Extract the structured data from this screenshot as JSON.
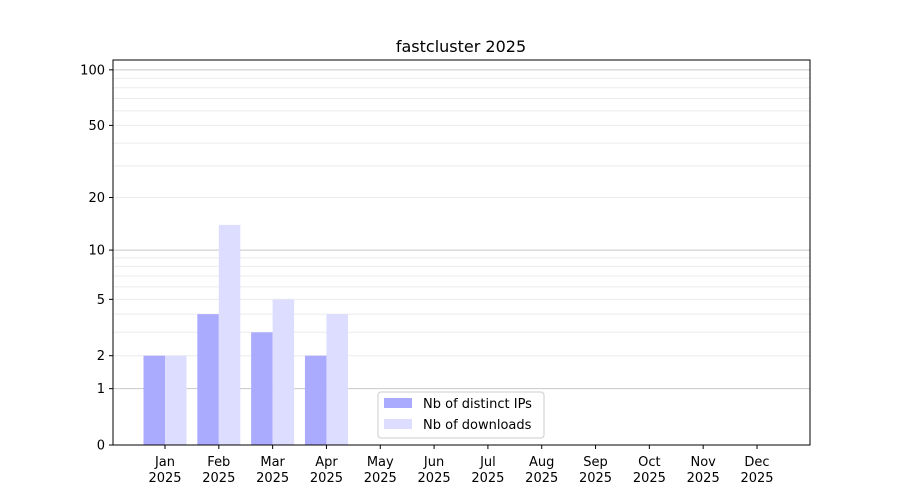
{
  "chart_data": {
    "type": "bar",
    "title": "fastcluster 2025",
    "xlabel": "",
    "ylabel": "",
    "yscale": "log(1+y)",
    "ylim": [
      0,
      113
    ],
    "yticks": [
      0,
      1,
      2,
      5,
      10,
      20,
      50,
      100
    ],
    "grid": true,
    "legend_position": "bottom-center",
    "categories": [
      "Jan\n2025",
      "Feb\n2025",
      "Mar\n2025",
      "Apr\n2025",
      "May\n2025",
      "Jun\n2025",
      "Jul\n2025",
      "Aug\n2025",
      "Sep\n2025",
      "Oct\n2025",
      "Nov\n2025",
      "Dec\n2025"
    ],
    "series": [
      {
        "name": "Nb of distinct IPs",
        "color": "#aaaaff",
        "values": [
          2,
          4,
          3,
          2,
          0,
          0,
          0,
          0,
          0,
          0,
          0,
          0
        ]
      },
      {
        "name": "Nb of downloads",
        "color": "#ddddff",
        "values": [
          2,
          14,
          5,
          4,
          0,
          0,
          0,
          0,
          0,
          0,
          0,
          0
        ]
      }
    ]
  }
}
